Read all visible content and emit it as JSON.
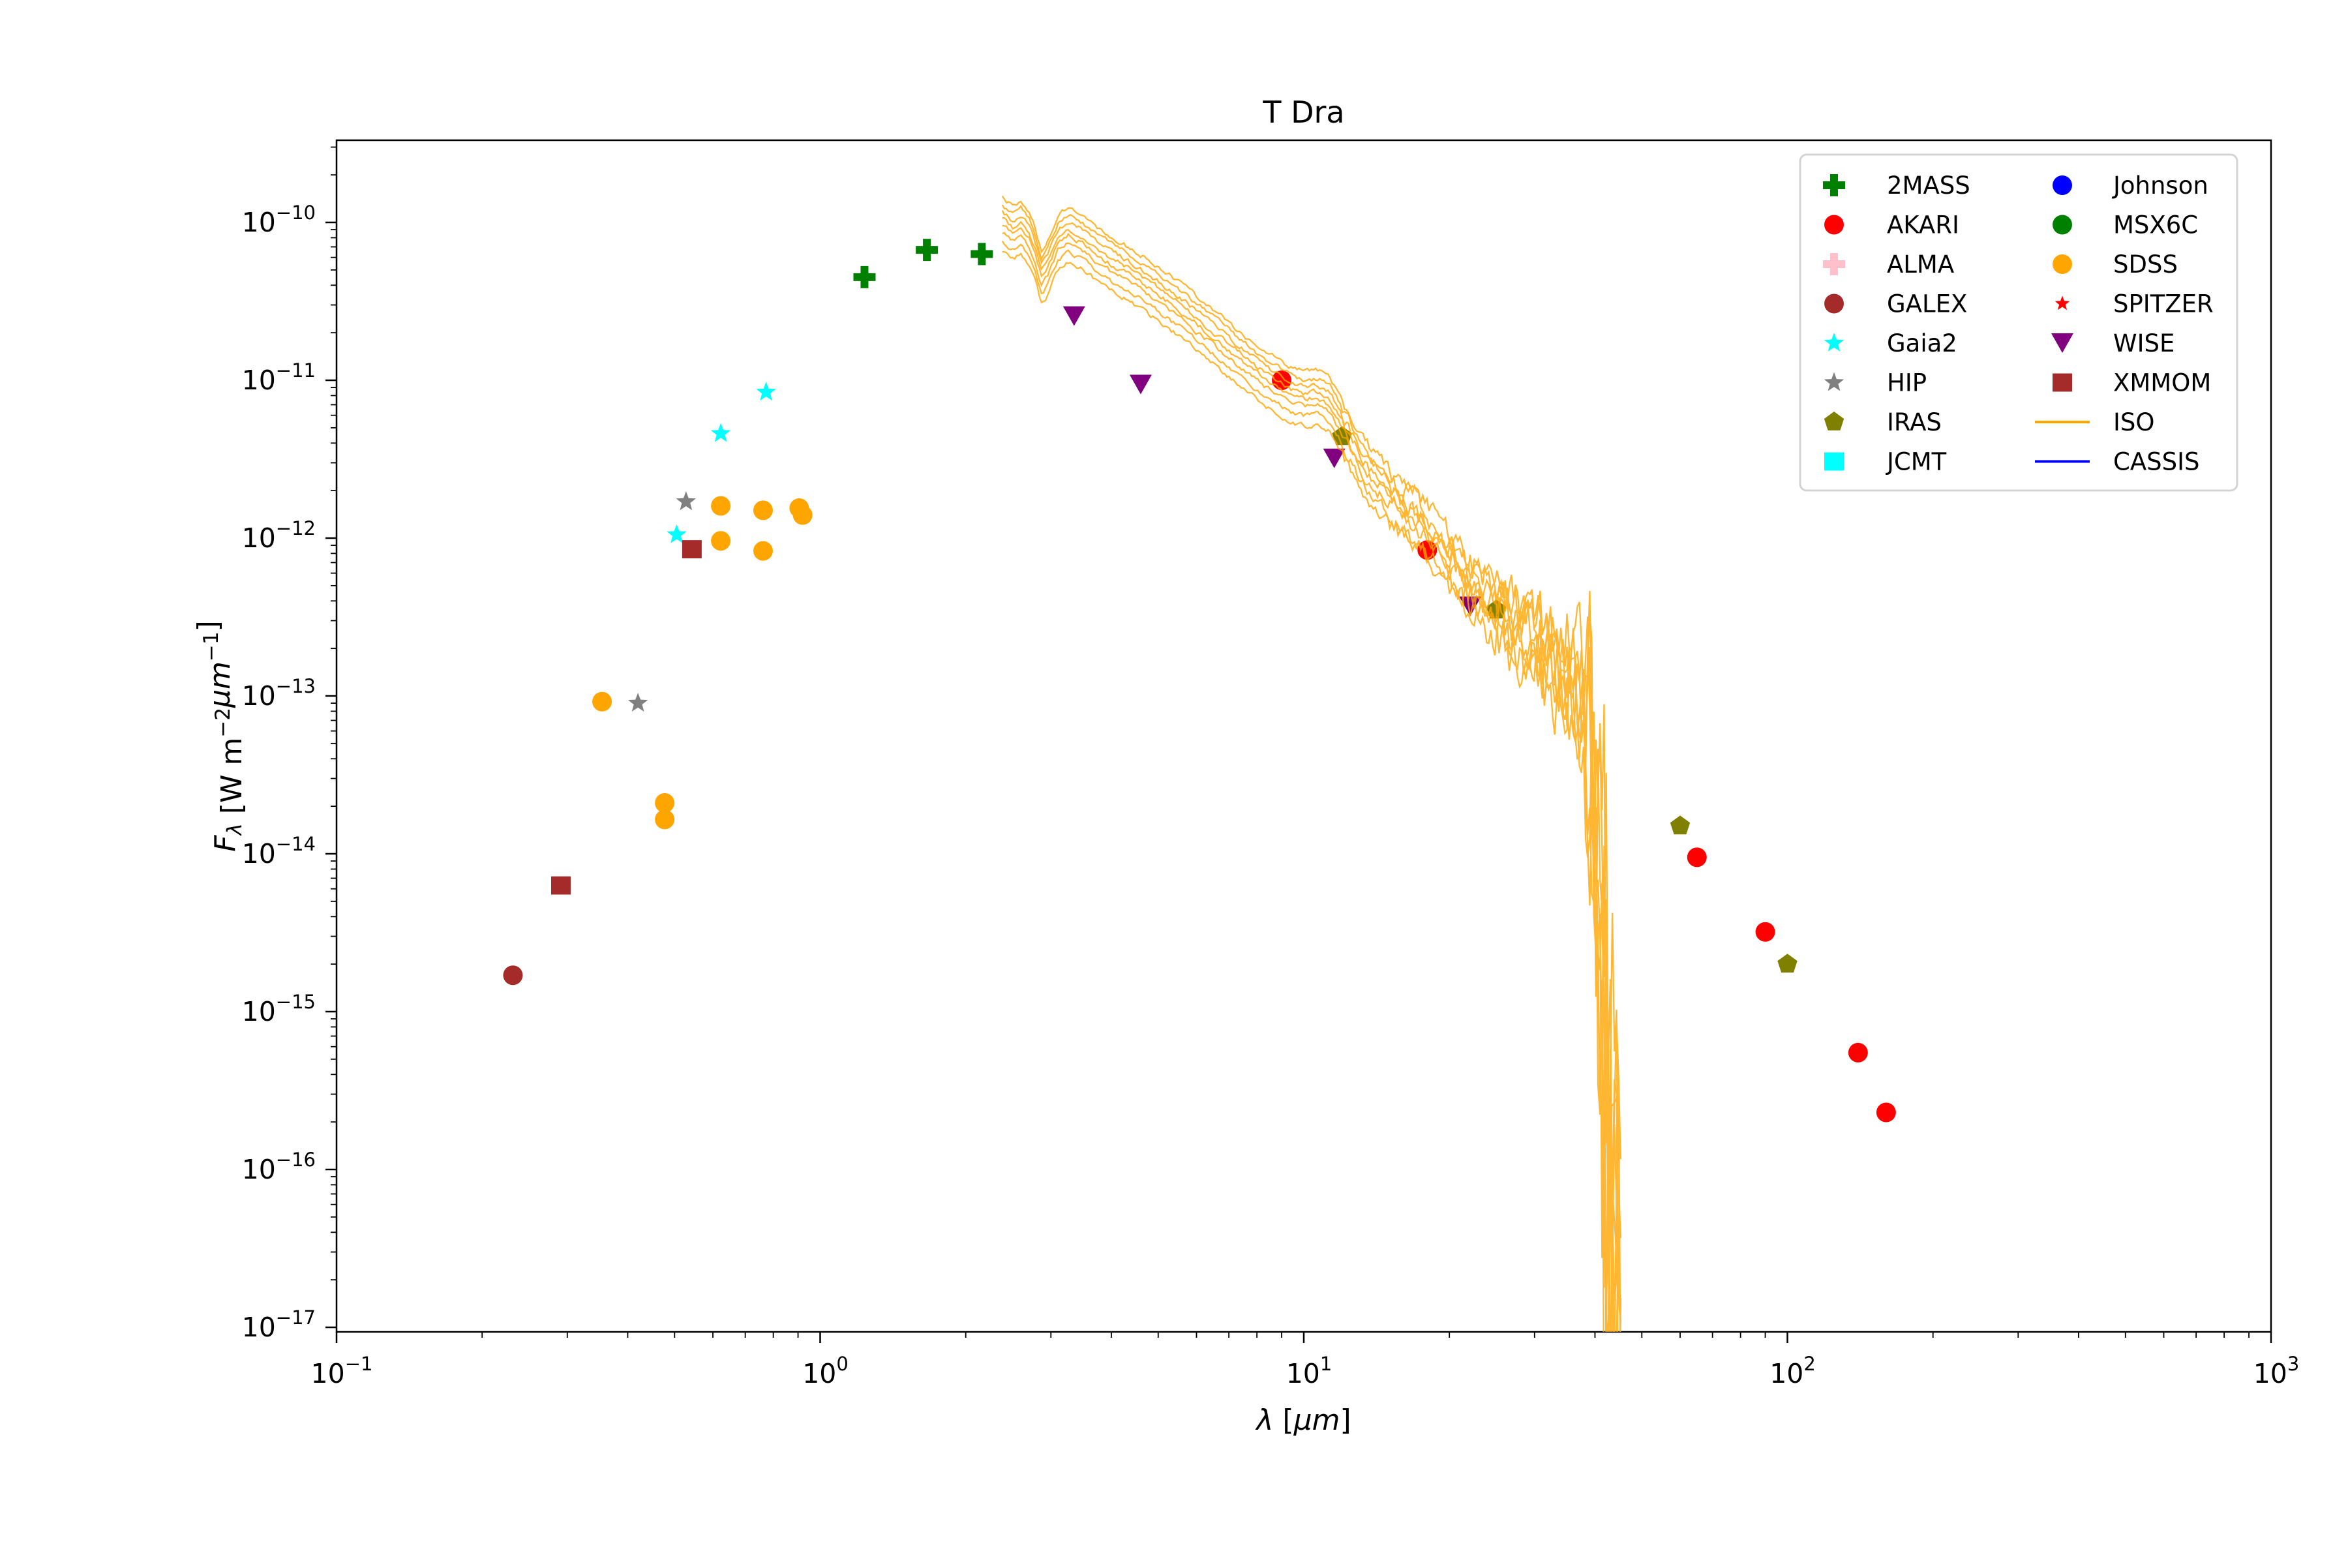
{
  "title": "T Dra",
  "axes": {
    "xlabel_parts": [
      {
        "t": "λ",
        "i": true
      },
      {
        "t": " [",
        "i": false
      },
      {
        "t": "μm",
        "i": true
      },
      {
        "t": "]",
        "i": false
      }
    ],
    "ylabel_parts": [
      {
        "t": "F",
        "i": true
      },
      {
        "t": "λ",
        "i": true,
        "sub": true
      },
      {
        "t": " [W m",
        "i": false
      },
      {
        "t": "−2",
        "sup": true
      },
      {
        "t": "μm",
        "i": true,
        "it_sup": false
      },
      {
        "t": "−1",
        "sup": true
      },
      {
        "t": "]",
        "i": false
      }
    ],
    "x_major_exponents": [
      -1,
      0,
      1,
      2,
      3
    ],
    "y_major_exponents": [
      -10,
      -11,
      -12,
      -13,
      -14,
      -15,
      -16,
      -17
    ],
    "tick_mantissa": "10",
    "xlim": [
      0.1,
      1000
    ],
    "ylim_top_flux": 3.32e-10,
    "ylim_bottom_flux": 1.05e-17,
    "grid": false
  },
  "legend": {
    "columns": [
      [
        {
          "label": "2MASS",
          "marker": "plus",
          "color": "#008000"
        },
        {
          "label": "AKARI",
          "marker": "circle",
          "color": "#ff0000"
        },
        {
          "label": "ALMA",
          "marker": "plus",
          "color": "#ffc0cb"
        },
        {
          "label": "GALEX",
          "marker": "circle",
          "color": "#a52a2a"
        },
        {
          "label": "Gaia2",
          "marker": "star",
          "color": "#00ffff"
        },
        {
          "label": "HIP",
          "marker": "star",
          "color": "#808080"
        },
        {
          "label": "IRAS",
          "marker": "pentagon",
          "color": "#808000"
        },
        {
          "label": "JCMT",
          "marker": "square",
          "color": "#00ffff"
        }
      ],
      [
        {
          "label": "Johnson",
          "marker": "circle",
          "color": "#0000ff"
        },
        {
          "label": "MSX6C",
          "marker": "circle",
          "color": "#008000"
        },
        {
          "label": "SDSS",
          "marker": "circle",
          "color": "#ffa500"
        },
        {
          "label": "SPITZER",
          "marker": "star-small",
          "color": "#ff0000"
        },
        {
          "label": "WISE",
          "marker": "triangle-down",
          "color": "#800080"
        },
        {
          "label": "XMMOM",
          "marker": "square",
          "color": "#a52a2a"
        },
        {
          "label": "ISO",
          "marker": "line",
          "color": "#ffa500"
        },
        {
          "label": "CASSIS",
          "marker": "line",
          "color": "#0000ff"
        }
      ]
    ]
  },
  "chart_data": {
    "type": "scatter",
    "title": "T Dra",
    "xlabel": "λ [μm]",
    "ylabel": "F_λ [W m^-2 μm^-1]",
    "x_scale": "log",
    "y_scale": "log",
    "xlim": [
      0.1,
      1000
    ],
    "ylim": [
      1.05e-17,
      3.32e-10
    ],
    "legend_position": "upper right",
    "series": [
      {
        "name": "2MASS",
        "marker": "plus",
        "color": "#008000",
        "points": [
          [
            1.235,
            4.5e-11
          ],
          [
            1.662,
            6.7e-11
          ],
          [
            2.159,
            6.3e-11
          ]
        ]
      },
      {
        "name": "AKARI",
        "marker": "circle",
        "color": "#ff0000",
        "points": [
          [
            9.0,
            1e-11
          ],
          [
            18.0,
            8.4e-13
          ],
          [
            65.0,
            9.5e-15
          ],
          [
            90.0,
            3.2e-15
          ],
          [
            140.0,
            5.5e-16
          ],
          [
            160.0,
            2.3e-16
          ]
        ]
      },
      {
        "name": "ALMA",
        "marker": "plus",
        "color": "#ffc0cb",
        "points": []
      },
      {
        "name": "GALEX",
        "marker": "circle",
        "color": "#a52a2a",
        "points": [
          [
            0.2316,
            1.7e-15
          ]
        ]
      },
      {
        "name": "Gaia2",
        "marker": "star",
        "color": "#00ffff",
        "points": [
          [
            0.505,
            1.05e-12
          ],
          [
            0.623,
            4.6e-12
          ],
          [
            0.773,
            8.4e-12
          ]
        ]
      },
      {
        "name": "HIP",
        "marker": "star",
        "color": "#808080",
        "points": [
          [
            0.42,
            9e-14
          ],
          [
            0.528,
            1.7e-12
          ]
        ]
      },
      {
        "name": "IRAS",
        "marker": "pentagon",
        "color": "#808000",
        "points": [
          [
            12.0,
            4.4e-12
          ],
          [
            25.0,
            3.5e-13
          ],
          [
            60.0,
            1.5e-14
          ],
          [
            100.0,
            2e-15
          ]
        ]
      },
      {
        "name": "JCMT",
        "marker": "square",
        "color": "#00ffff",
        "points": []
      },
      {
        "name": "Johnson",
        "marker": "circle",
        "color": "#0000ff",
        "points": []
      },
      {
        "name": "MSX6C",
        "marker": "circle",
        "color": "#008000",
        "points": []
      },
      {
        "name": "SDSS",
        "marker": "circle",
        "color": "#ffa500",
        "points": [
          [
            0.354,
            9.2e-14
          ],
          [
            0.477,
            2.1e-14
          ],
          [
            0.477,
            1.65e-14
          ],
          [
            0.623,
            1.6e-12
          ],
          [
            0.623,
            9.6e-13
          ],
          [
            0.762,
            1.5e-12
          ],
          [
            0.762,
            8.3e-13
          ],
          [
            0.905,
            1.55e-12
          ],
          [
            0.92,
            1.4e-12
          ]
        ]
      },
      {
        "name": "SPITZER",
        "marker": "star-small",
        "color": "#ff0000",
        "points": []
      },
      {
        "name": "WISE",
        "marker": "triangle-down",
        "color": "#800080",
        "points": [
          [
            3.35,
            2.55e-11
          ],
          [
            4.6,
            9.4e-12
          ],
          [
            11.56,
            3.2e-12
          ],
          [
            22.09,
            3.7e-13
          ]
        ]
      },
      {
        "name": "XMMOM",
        "marker": "square",
        "color": "#a52a2a",
        "points": [
          [
            0.291,
            6.3e-15
          ],
          [
            0.543,
            8.5e-13
          ]
        ]
      }
    ],
    "iso_spectra": {
      "name": "ISO",
      "color": "#ffa500",
      "opacity": 0.8,
      "lambda_range": [
        2.38,
        45.2
      ],
      "median_knots": [
        [
          2.38,
          1e-10
        ],
        [
          2.5,
          8.8e-11
        ],
        [
          2.6,
          9.5e-11
        ],
        [
          2.7,
          8.2e-11
        ],
        [
          2.78,
          6.5e-11
        ],
        [
          2.87,
          4.6e-11
        ],
        [
          2.95,
          5.2e-11
        ],
        [
          3.1,
          7.6e-11
        ],
        [
          3.25,
          8.6e-11
        ],
        [
          3.45,
          7.8e-11
        ],
        [
          3.7,
          6.6e-11
        ],
        [
          4.0,
          5.6e-11
        ],
        [
          4.3,
          4.9e-11
        ],
        [
          4.6,
          4.3e-11
        ],
        [
          5.0,
          3.6e-11
        ],
        [
          5.5,
          2.9e-11
        ],
        [
          6.0,
          2.35e-11
        ],
        [
          6.6,
          1.85e-11
        ],
        [
          7.0,
          1.6e-11
        ],
        [
          7.5,
          1.35e-11
        ],
        [
          8.0,
          1.15e-11
        ],
        [
          8.5,
          1e-11
        ],
        [
          9.0,
          9e-12
        ],
        [
          9.5,
          8.2e-12
        ],
        [
          10.0,
          7.8e-12
        ],
        [
          10.7,
          8e-12
        ],
        [
          11.3,
          7.2e-12
        ],
        [
          12.0,
          5.2e-12
        ],
        [
          12.6,
          3.8e-12
        ],
        [
          13.5,
          2.7e-12
        ],
        [
          15.0,
          1.9e-12
        ],
        [
          17.0,
          1.3e-12
        ],
        [
          19.0,
          8.8e-13
        ],
        [
          21.0,
          6.2e-13
        ],
        [
          23.0,
          4.4e-13
        ],
        [
          25.0,
          3.5e-13
        ],
        [
          27.0,
          2.8e-13
        ],
        [
          30.0,
          2.1e-13
        ],
        [
          33.0,
          1.5e-13
        ],
        [
          36.0,
          1.05e-13
        ],
        [
          38.0,
          7e-14
        ],
        [
          39.5,
          4e-14
        ],
        [
          40.5,
          1.8e-14
        ],
        [
          41.5,
          4e-15
        ],
        [
          42.5,
          7e-16
        ],
        [
          43.5,
          2.5e-16
        ],
        [
          44.3,
          3.5e-16
        ],
        [
          45.2,
          2.5e-16
        ]
      ],
      "trace_offsets": [
        0.66,
        0.76,
        0.87,
        0.97,
        1.06,
        1.17,
        1.3,
        1.45
      ],
      "deep_spike": {
        "trace_index": 3,
        "lambda": 42.8,
        "min_flux": 1.1e-17
      },
      "noise_sigma_dex_breaks": [
        [
          12,
          0.012
        ],
        [
          15,
          0.02
        ],
        [
          20,
          0.035
        ],
        [
          25,
          0.055
        ],
        [
          30,
          0.085
        ],
        [
          35,
          0.13
        ],
        [
          38,
          0.2
        ],
        [
          40,
          0.45
        ],
        [
          45.2,
          0.75
        ]
      ],
      "seed": 7
    },
    "cassis": {
      "name": "CASSIS",
      "color": "#0000ff",
      "points": []
    }
  },
  "layout_note_colors": {
    "spine": "#000000",
    "background": "#ffffff",
    "legend_border": "#d3d3d3"
  }
}
